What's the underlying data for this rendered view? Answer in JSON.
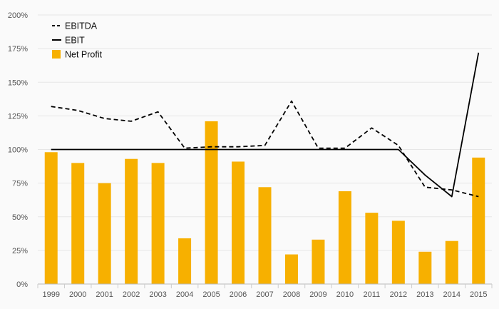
{
  "chart_data": {
    "type": "bar",
    "categories": [
      "1999",
      "2000",
      "2001",
      "2002",
      "2003",
      "2004",
      "2005",
      "2006",
      "2007",
      "2008",
      "2009",
      "2010",
      "2011",
      "2012",
      "2013",
      "2014",
      "2015"
    ],
    "series": [
      {
        "name": "EBITDA",
        "kind": "line",
        "style": "dashed",
        "color": "#000000",
        "values": [
          132,
          129,
          123,
          121,
          128,
          101,
          102,
          102,
          103,
          136,
          101,
          101,
          116,
          103,
          72,
          70,
          65
        ]
      },
      {
        "name": "EBIT",
        "kind": "line",
        "style": "solid",
        "color": "#000000",
        "values": [
          100,
          100,
          100,
          100,
          100,
          100,
          100,
          100,
          100,
          100,
          100,
          100,
          100,
          100,
          81,
          65,
          172
        ]
      },
      {
        "name": "Net Profit",
        "kind": "bar",
        "color": "#F7B000",
        "values": [
          98,
          90,
          75,
          93,
          90,
          34,
          121,
          91,
          72,
          22,
          33,
          69,
          53,
          47,
          24,
          32,
          94
        ]
      }
    ],
    "ylim": [
      0,
      200
    ],
    "yticks": [
      0,
      25,
      50,
      75,
      100,
      125,
      150,
      175,
      200
    ],
    "ytick_labels": [
      "0%",
      "25%",
      "50%",
      "75%",
      "100%",
      "125%",
      "150%",
      "175%",
      "200%"
    ],
    "title": "",
    "xlabel": "",
    "ylabel": "",
    "grid": true,
    "legend_position": "top-left"
  }
}
